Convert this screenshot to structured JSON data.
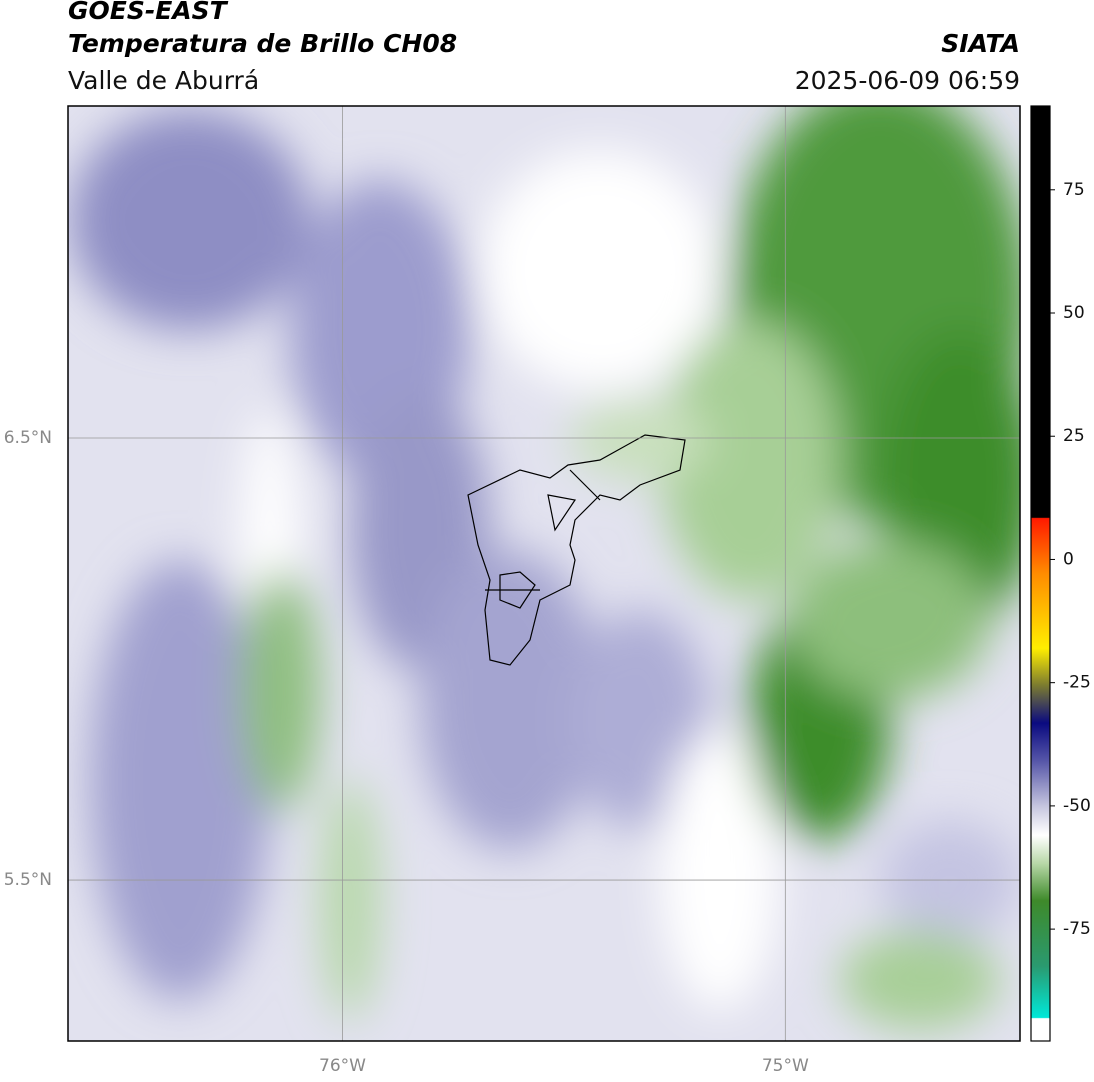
{
  "header": {
    "title": "GOES-EAST",
    "subtitle": "Temperatura de Brillo CH08",
    "region": "Valle de Aburrá",
    "source": "SIATA",
    "datetime": "2025-06-09 06:59"
  },
  "map": {
    "xlim": [
      -76.62,
      -74.47
    ],
    "ylim": [
      5.136,
      7.251
    ],
    "xticks": [
      {
        "value": -76,
        "label": "76°W"
      },
      {
        "value": -75,
        "label": "75°W"
      }
    ],
    "yticks": [
      {
        "value": 6.5,
        "label": "6.5°N"
      },
      {
        "value": 5.5,
        "label": "5.5°N"
      }
    ]
  },
  "colorbar": {
    "lim": [
      -97.7,
      92
    ],
    "ticks": [
      75,
      50,
      25,
      0,
      -25,
      -50,
      -75
    ]
  }
}
